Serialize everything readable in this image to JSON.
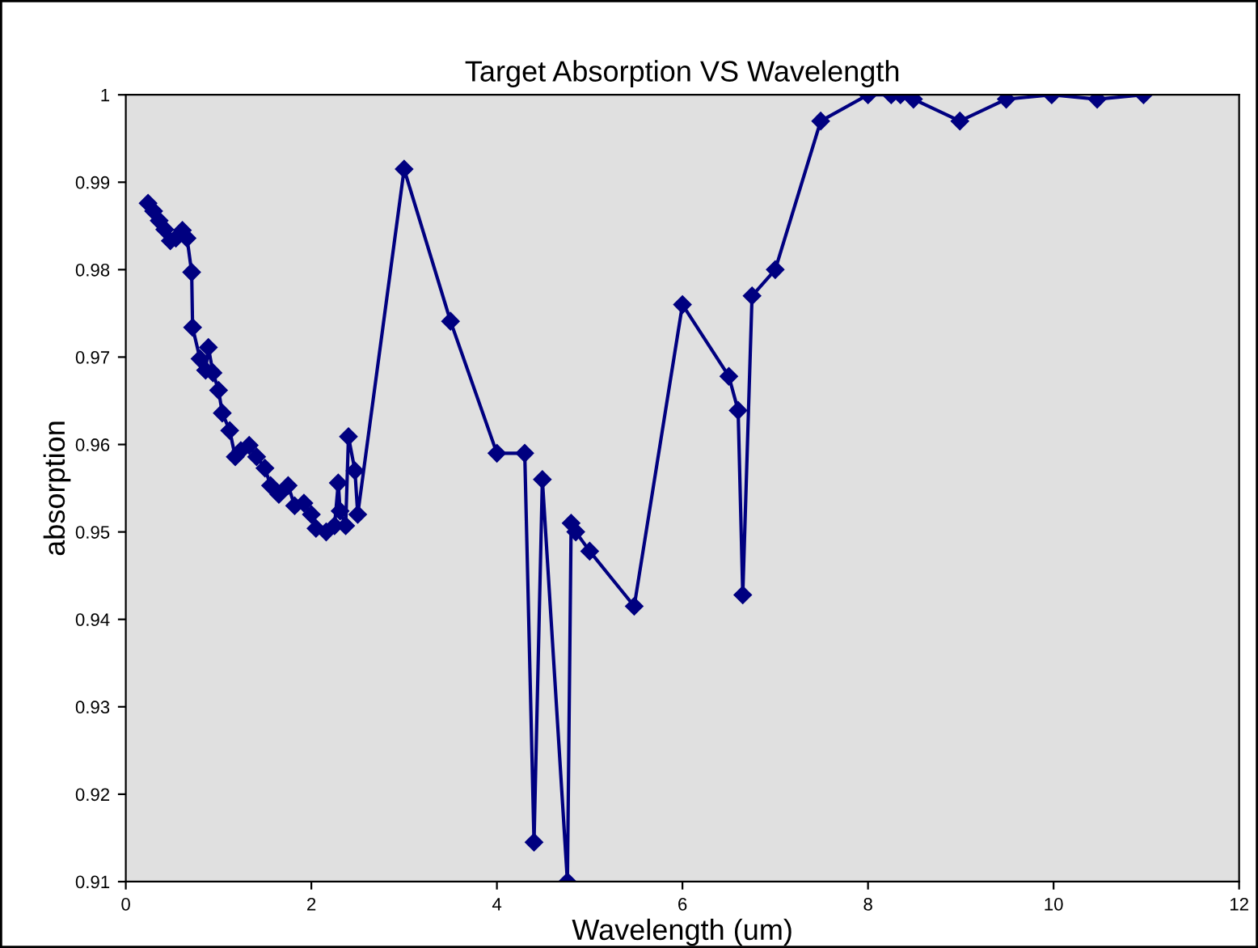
{
  "chart_data": {
    "type": "line",
    "title": "Target Absorption VS Wavelength",
    "xlabel": "Wavelength (um)",
    "ylabel": "absorption",
    "series": [
      {
        "color": "#000080",
        "x": [
          0.24,
          0.3,
          0.36,
          0.42,
          0.48,
          0.54,
          0.61,
          0.66,
          0.71,
          0.72,
          0.8,
          0.86,
          0.89,
          0.94,
          1.0,
          1.04,
          1.12,
          1.18,
          1.24,
          1.33,
          1.41,
          1.5,
          1.56,
          1.65,
          1.75,
          1.82,
          1.92,
          2.0,
          2.05,
          2.16,
          2.25,
          2.29,
          2.31,
          2.37,
          2.4,
          2.47,
          2.5,
          3.0,
          3.5,
          4.0,
          4.3,
          4.4,
          4.49,
          4.76,
          4.8,
          4.85,
          5.0,
          5.48,
          6.0,
          6.5,
          6.6,
          6.65,
          6.75,
          7.0,
          7.49,
          8.0,
          8.25,
          8.35,
          8.49,
          8.99,
          9.49,
          9.98,
          10.47,
          10.97
        ],
        "values": [
          0.9876,
          0.9867,
          0.9856,
          0.9846,
          0.9833,
          0.9836,
          0.9845,
          0.9836,
          0.9797,
          0.9734,
          0.9698,
          0.9685,
          0.9711,
          0.9682,
          0.9662,
          0.9636,
          0.9616,
          0.9586,
          0.9593,
          0.9599,
          0.9586,
          0.9573,
          0.9553,
          0.9543,
          0.9553,
          0.953,
          0.9533,
          0.952,
          0.9504,
          0.95,
          0.9507,
          0.9556,
          0.9524,
          0.9507,
          0.9609,
          0.957,
          0.952,
          0.9915,
          0.9741,
          0.959,
          0.959,
          0.9145,
          0.956,
          0.91,
          0.951,
          0.95,
          0.9478,
          0.9415,
          0.976,
          0.9678,
          0.9639,
          0.9428,
          0.977,
          0.98,
          0.997,
          1.0,
          1.0,
          1.0,
          0.9995,
          0.997,
          0.9995,
          1.0,
          0.9995,
          1.0
        ]
      }
    ],
    "marker": "diamond",
    "line_style": "solid",
    "grid": false,
    "legend": false,
    "xlim": [
      0,
      12
    ],
    "xticks": [
      0,
      2,
      4,
      6,
      8,
      10,
      12
    ],
    "ylim": [
      0.91,
      1
    ],
    "yticks": [
      0.91,
      0.92,
      0.93,
      0.94,
      0.95,
      0.96,
      0.97,
      0.98,
      0.99,
      1
    ]
  }
}
